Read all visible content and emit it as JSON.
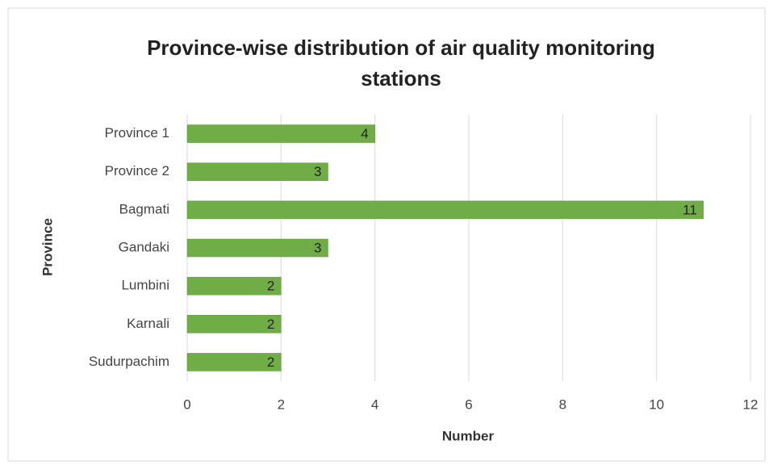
{
  "chart_data": {
    "type": "bar",
    "orientation": "horizontal",
    "title": "Province-wise distribution of air quality monitoring stations",
    "x_label": "Number",
    "y_label": "Province",
    "categories": [
      "Province 1",
      "Province 2",
      "Bagmati",
      "Gandaki",
      "Lumbini",
      "Karnali",
      "Sudurpachim"
    ],
    "values": [
      4,
      3,
      11,
      3,
      2,
      2,
      2
    ],
    "color": "#70ad47",
    "xlim": [
      0,
      12
    ],
    "xticks": [
      0,
      2,
      4,
      6,
      8,
      10,
      12
    ],
    "grid": true
  }
}
